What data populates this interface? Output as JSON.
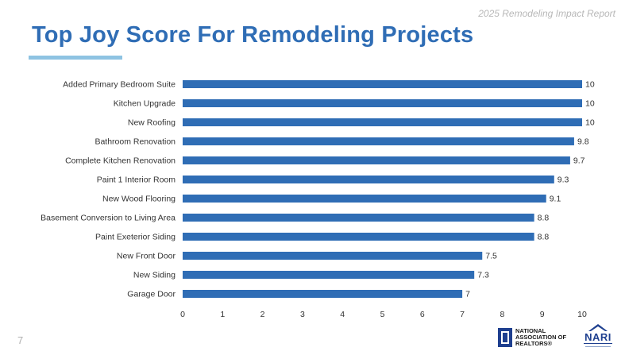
{
  "header": {
    "report_label": "2025 Remodeling Impact Report",
    "title": "Top Joy Score For Remodeling Projects"
  },
  "footer": {
    "page_number": "7",
    "nar_logo_text": "NATIONAL ASSOCIATION OF REALTORS®",
    "nari_logo_text": "NARI"
  },
  "colors": {
    "title": "#2f6db5",
    "bar": "#2f6db5",
    "underline": "#8ec3e2"
  },
  "chart_data": {
    "type": "bar",
    "orientation": "horizontal",
    "categories": [
      "Added Primary Bedroom Suite",
      "Kitchen Upgrade",
      "New Roofing",
      "Bathroom Renovation",
      "Complete Kitchen Renovation",
      "Paint 1 Interior Room",
      "New Wood Flooring",
      "Basement Conversion to Living Area",
      "Paint Exeterior Siding",
      "New Front Door",
      "New Siding",
      "Garage Door"
    ],
    "values": [
      10,
      10,
      10,
      9.8,
      9.7,
      9.3,
      9.1,
      8.8,
      8.8,
      7.5,
      7.3,
      7
    ],
    "value_labels": [
      "10",
      "10",
      "10",
      "9.8",
      "9.7",
      "9.3",
      "9.1",
      "8.8",
      "8.8",
      "7.5",
      "7.3",
      "7"
    ],
    "xlim": [
      0,
      10
    ],
    "xticks": [
      "0",
      "1",
      "2",
      "3",
      "4",
      "5",
      "6",
      "7",
      "8",
      "9",
      "10"
    ],
    "grid": false,
    "title": "Top Joy Score For Remodeling Projects"
  }
}
